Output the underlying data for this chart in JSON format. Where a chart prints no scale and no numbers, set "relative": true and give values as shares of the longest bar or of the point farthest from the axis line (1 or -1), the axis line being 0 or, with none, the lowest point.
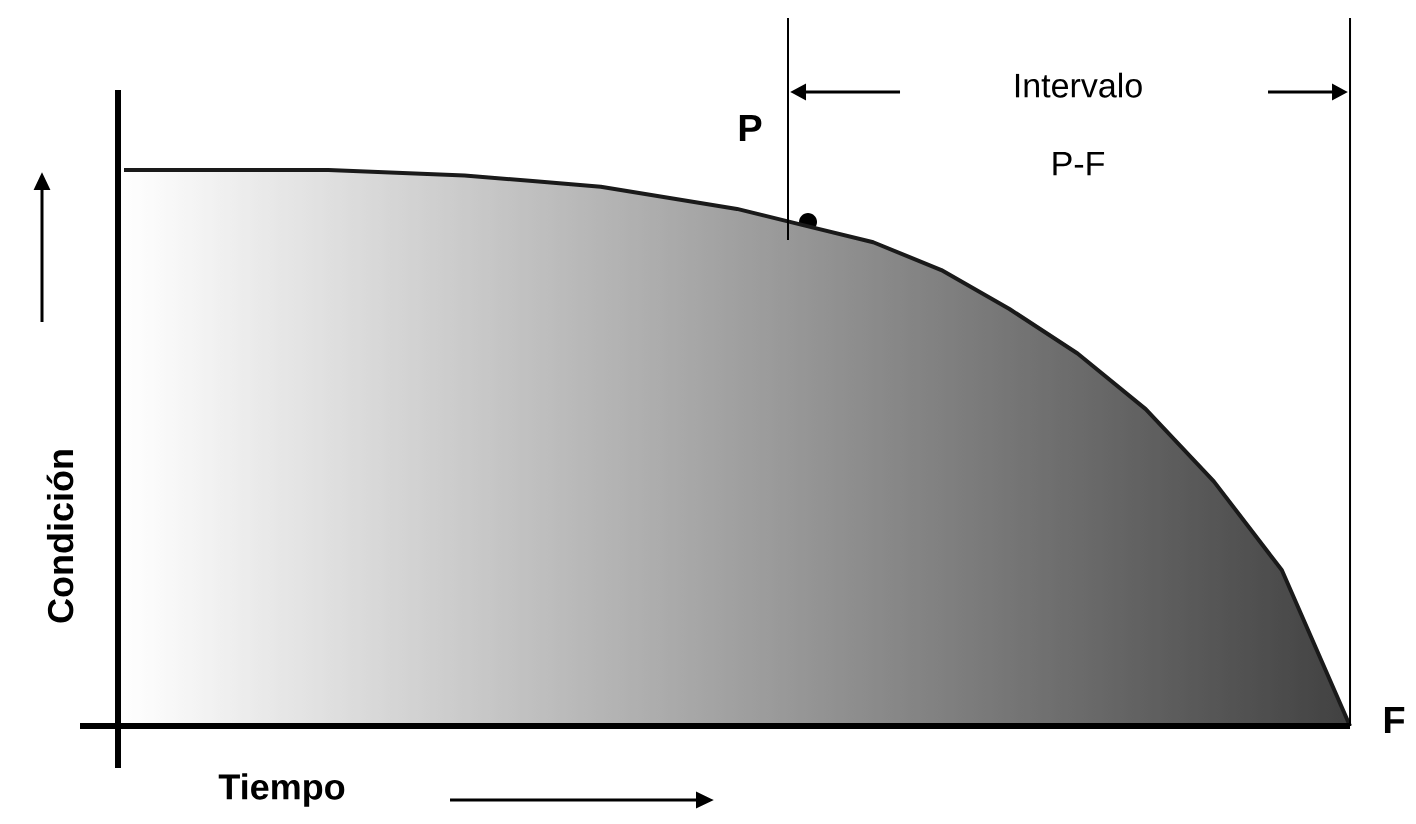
{
  "chart_data": {
    "type": "line",
    "relative": true,
    "xlabel": "Tiempo",
    "ylabel": "Condición",
    "categories": [
      null,
      null,
      null,
      null,
      null,
      null,
      null,
      null,
      null,
      null,
      null,
      null,
      null,
      null,
      null,
      null,
      null,
      null,
      null
    ],
    "series": [
      {
        "color": "#1a1a1a",
        "values": [
          1,
          1,
          1,
          1,
          0.995,
          0.99,
          0.98,
          0.97,
          0.95,
          0.93,
          0.9,
          0.87,
          0.82,
          0.75,
          0.67,
          0.57,
          0.44,
          0.28,
          0
        ]
      }
    ],
    "annotations": [
      "P",
      "F",
      "Intervalo P-F"
    ]
  }
}
